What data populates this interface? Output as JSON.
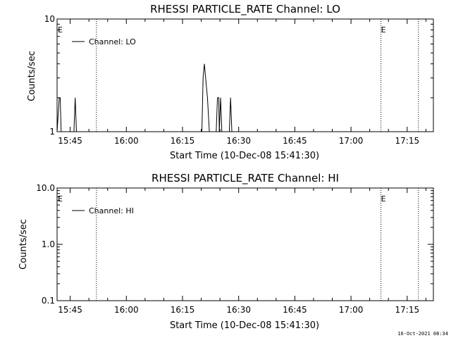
{
  "footer": {
    "timestamp": "16-Oct-2021 08:34"
  },
  "chart_data": [
    {
      "type": "line",
      "title": "RHESSI PARTICLE_RATE Channel: LO",
      "xlabel": "Start Time (10-Dec-08 15:41:30)",
      "ylabel": "Counts/sec",
      "yscale": "log",
      "xlim": [
        "15:41:30",
        "17:22:00"
      ],
      "ylim": [
        1,
        10
      ],
      "x_ticks": [
        "15:45",
        "16:00",
        "16:15",
        "16:30",
        "16:45",
        "17:00",
        "17:15"
      ],
      "y_ticks": [
        {
          "value": 1,
          "label": "1"
        },
        {
          "value": 10,
          "label": "10"
        }
      ],
      "legend": {
        "position": "top-left",
        "entries": [
          "Channel: LO"
        ]
      },
      "event_marks": [
        {
          "time": "15:41:30",
          "label": "E",
          "line": false
        },
        {
          "time": "15:52:00",
          "label": "",
          "line": true
        },
        {
          "time": "17:08:00",
          "label": "E",
          "line": true
        },
        {
          "time": "17:18:00",
          "label": "",
          "line": true
        }
      ],
      "series": [
        {
          "name": "Channel: LO",
          "x": [
            "15:41:30",
            "15:42:05",
            "15:42:20",
            "15:42:35",
            "15:42:55",
            "15:46:00",
            "15:46:20",
            "15:46:40",
            "16:20:10",
            "16:20:30",
            "16:20:50",
            "16:21:10",
            "16:21:40",
            "16:22:10",
            "16:22:40",
            "16:24:00",
            "16:24:20",
            "16:24:40",
            "16:24:50",
            "16:25:10",
            "16:25:30",
            "16:27:30",
            "16:27:50",
            "16:28:10"
          ],
          "y": [
            1,
            2,
            2,
            1,
            1,
            1,
            2,
            1,
            1,
            3,
            4,
            3,
            2,
            1,
            1,
            1,
            2,
            2,
            1,
            2,
            1,
            1,
            2,
            1
          ]
        }
      ]
    },
    {
      "type": "line",
      "title": "RHESSI PARTICLE_RATE Channel: HI",
      "xlabel": "Start Time (10-Dec-08 15:41:30)",
      "ylabel": "Counts/sec",
      "yscale": "log",
      "xlim": [
        "15:41:30",
        "17:22:00"
      ],
      "ylim": [
        0.1,
        10
      ],
      "x_ticks": [
        "15:45",
        "16:00",
        "16:15",
        "16:30",
        "16:45",
        "17:00",
        "17:15"
      ],
      "y_ticks": [
        {
          "value": 0.1,
          "label": "0.1"
        },
        {
          "value": 1,
          "label": "1.0"
        },
        {
          "value": 10,
          "label": "10.0"
        }
      ],
      "legend": {
        "position": "top-left",
        "entries": [
          "Channel: HI"
        ]
      },
      "event_marks": [
        {
          "time": "15:41:30",
          "label": "E",
          "line": false
        },
        {
          "time": "15:52:00",
          "label": "",
          "line": true
        },
        {
          "time": "17:08:00",
          "label": "E",
          "line": true
        },
        {
          "time": "17:18:00",
          "label": "",
          "line": true
        }
      ],
      "series": [
        {
          "name": "Channel: HI",
          "x": [],
          "y": []
        }
      ]
    }
  ]
}
